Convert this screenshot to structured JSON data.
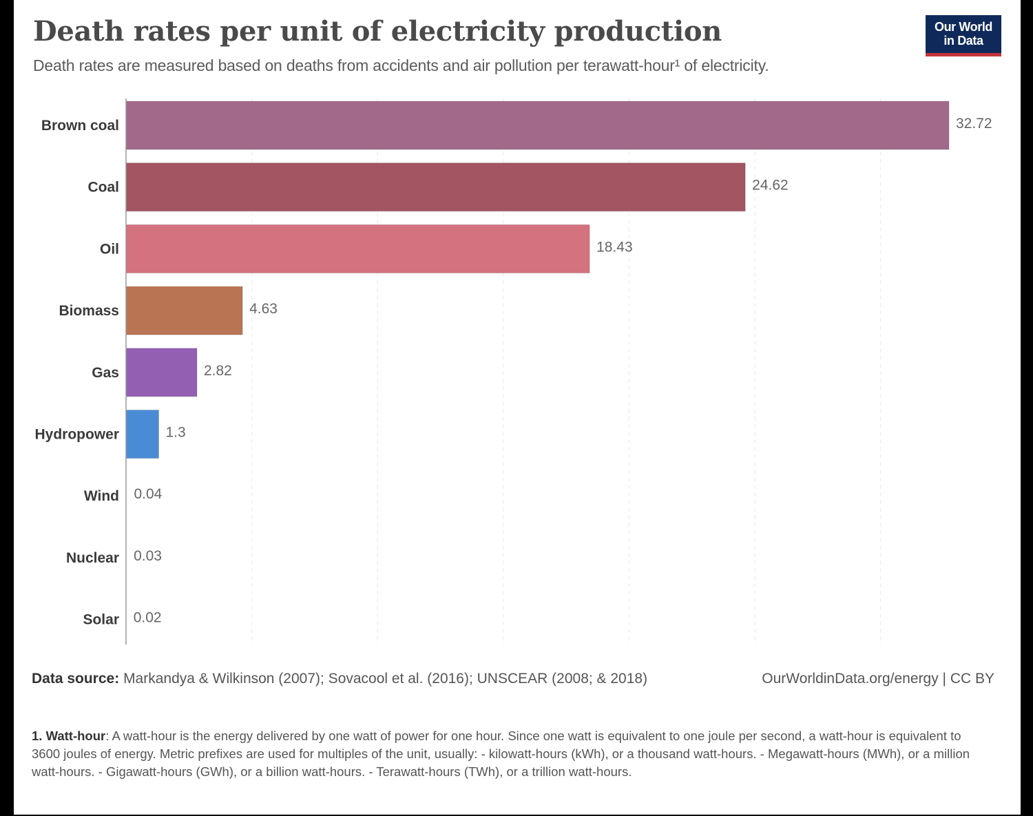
{
  "header": {
    "title": "Death rates per unit of electricity production",
    "subtitle": "Death rates are measured based on deaths from accidents and air pollution per terawatt-hour¹ of electricity.",
    "logo_line1": "Our World",
    "logo_line2": "in Data"
  },
  "chart_data": {
    "type": "bar",
    "orientation": "horizontal",
    "title": "Death rates per unit of electricity production",
    "subtitle": "Death rates are measured based on deaths from accidents and air pollution per terawatt-hour of electricity.",
    "xlabel": "",
    "ylabel": "",
    "xlim": [
      0,
      35
    ],
    "grid": true,
    "grid_step": 5,
    "categories": [
      "Brown coal",
      "Coal",
      "Oil",
      "Biomass",
      "Gas",
      "Hydropower",
      "Wind",
      "Nuclear",
      "Solar"
    ],
    "values": [
      32.72,
      24.62,
      18.43,
      4.63,
      2.82,
      1.3,
      0.04,
      0.03,
      0.02
    ],
    "value_labels": [
      "32.72",
      "24.62",
      "18.43",
      "4.63",
      "2.82",
      "1.3",
      "0.04",
      "0.03",
      "0.02"
    ],
    "colors": [
      "#a3698b",
      "#a35561",
      "#d4727f",
      "#b97453",
      "#925fb3",
      "#4a8bd6",
      "#5a7bb0",
      "#5a7bb0",
      "#5a7bb0"
    ]
  },
  "footer": {
    "source_label": "Data source:",
    "source_text": "Markandya & Wilkinson (2007); Sovacool et al. (2016); UNSCEAR (2008; & 2018)",
    "credit": "OurWorldinData.org/energy | CC BY",
    "note_label": "1. Watt-hour",
    "note_text": ": A watt-hour is the energy delivered by one watt of power for one hour. Since one watt is equivalent to one joule per second, a watt-hour is equivalent to 3600 joules of energy. Metric prefixes are used for multiples of the unit, usually: - kilowatt-hours (kWh), or a thousand watt-hours. - Megawatt-hours (MWh), or a million watt-hours. - Gigawatt-hours (GWh), or a billion watt-hours. - Terawatt-hours (TWh), or a trillion watt-hours."
  }
}
